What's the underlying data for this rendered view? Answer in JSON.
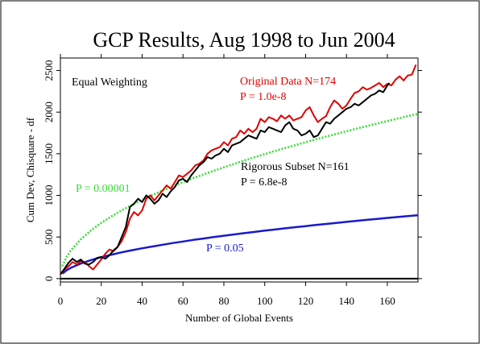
{
  "chart_data": {
    "type": "line",
    "title": "GCP Results, Aug 1998 to Jun 2004",
    "xlabel": "Number of Global Events",
    "ylabel": "Cum Dev, Chisquare - df",
    "xlim": [
      0,
      175
    ],
    "ylim": [
      -40,
      2650
    ],
    "x_ticks": [
      0,
      20,
      40,
      60,
      80,
      100,
      120,
      140,
      160
    ],
    "y_ticks": [
      0,
      500,
      1000,
      1500,
      2000,
      2500
    ],
    "x_tick_labels": [
      "0",
      "20",
      "40",
      "60",
      "80",
      "100",
      "120",
      "140",
      "160"
    ],
    "y_tick_labels": [
      "0",
      "500",
      "1000",
      "1500",
      "2000",
      "2500"
    ],
    "grid": false,
    "zero_line": true,
    "annotations": {
      "weighting": "Equal Weighting",
      "original_title": "Original Data N=174",
      "original_p": "P = 1.0e-8",
      "subset_title": "Rigorous Subset N=161",
      "subset_p": "P = 6.8e-8",
      "p_high": "P = 0.00001",
      "p_low": "P = 0.05"
    },
    "colors": {
      "original": "#e00000",
      "subset": "#000000",
      "p_high": "#33dd33",
      "p_low": "#1a1acc",
      "axis": "#000000"
    },
    "series": [
      {
        "key": "original",
        "x": [
          0,
          2,
          4,
          6,
          8,
          10,
          12,
          14,
          16,
          18,
          20,
          22,
          24,
          26,
          28,
          30,
          32,
          34,
          36,
          38,
          40,
          42,
          44,
          46,
          48,
          50,
          52,
          54,
          56,
          58,
          60,
          62,
          64,
          66,
          68,
          70,
          72,
          74,
          76,
          78,
          80,
          82,
          84,
          86,
          88,
          90,
          92,
          94,
          96,
          98,
          100,
          102,
          104,
          106,
          108,
          110,
          112,
          114,
          116,
          118,
          120,
          122,
          124,
          126,
          128,
          130,
          132,
          134,
          136,
          138,
          140,
          142,
          144,
          146,
          148,
          150,
          152,
          154,
          156,
          158,
          160,
          162,
          164,
          166,
          168,
          170,
          172,
          174
        ],
        "values": [
          60,
          110,
          150,
          200,
          170,
          210,
          200,
          150,
          110,
          170,
          230,
          300,
          350,
          330,
          380,
          450,
          560,
          720,
          800,
          760,
          820,
          960,
          1000,
          940,
          1000,
          1060,
          1120,
          1080,
          1160,
          1240,
          1220,
          1260,
          1300,
          1360,
          1380,
          1420,
          1500,
          1540,
          1560,
          1580,
          1640,
          1600,
          1680,
          1700,
          1780,
          1740,
          1800,
          1760,
          1800,
          1920,
          1880,
          1940,
          1920,
          1890,
          1960,
          1920,
          1960,
          1900,
          1920,
          1940,
          2020,
          2060,
          1960,
          1880,
          1920,
          1950,
          2060,
          2140,
          2100,
          2040,
          2080,
          2160,
          2230,
          2250,
          2300,
          2270,
          2290,
          2320,
          2350,
          2300,
          2340,
          2320,
          2390,
          2430,
          2380,
          2440,
          2450,
          2570
        ]
      },
      {
        "key": "subset",
        "x": [
          0,
          2,
          4,
          6,
          8,
          10,
          12,
          14,
          16,
          18,
          20,
          22,
          24,
          26,
          28,
          30,
          32,
          34,
          36,
          38,
          40,
          42,
          44,
          46,
          48,
          50,
          52,
          54,
          56,
          58,
          60,
          62,
          64,
          66,
          68,
          70,
          72,
          74,
          76,
          78,
          80,
          82,
          84,
          86,
          88,
          90,
          92,
          94,
          96,
          98,
          100,
          102,
          104,
          106,
          108,
          110,
          112,
          114,
          116,
          118,
          120,
          122,
          124,
          126,
          128,
          130,
          132,
          134,
          136,
          138,
          140,
          142,
          144,
          146,
          148,
          150,
          152,
          154,
          156,
          158,
          160,
          161
        ],
        "values": [
          50,
          120,
          190,
          240,
          200,
          230,
          180,
          170,
          200,
          250,
          260,
          240,
          280,
          340,
          380,
          500,
          620,
          860,
          900,
          960,
          920,
          1000,
          960,
          900,
          940,
          1020,
          980,
          1050,
          1100,
          1180,
          1200,
          1160,
          1240,
          1300,
          1360,
          1400,
          1460,
          1440,
          1480,
          1500,
          1560,
          1520,
          1600,
          1620,
          1640,
          1680,
          1720,
          1700,
          1680,
          1780,
          1760,
          1820,
          1800,
          1780,
          1760,
          1840,
          1880,
          1800,
          1780,
          1720,
          1740,
          1780,
          1700,
          1720,
          1800,
          1880,
          1860,
          1920,
          1960,
          2000,
          2040,
          2060,
          2100,
          2080,
          2120,
          2160,
          2200,
          2220,
          2260,
          2240,
          2320,
          2350
        ]
      },
      {
        "key": "p_high",
        "x": [
          1,
          3,
          5,
          10,
          15,
          20,
          25,
          30,
          35,
          40,
          45,
          50,
          55,
          60,
          65,
          70,
          75,
          80,
          85,
          90,
          95,
          100,
          105,
          110,
          115,
          120,
          125,
          130,
          135,
          140,
          145,
          150,
          155,
          160,
          165,
          170,
          175
        ],
        "values": [
          150,
          260,
          335,
          473,
          580,
          669,
          748,
          820,
          885,
          946,
          1004,
          1058,
          1110,
          1159,
          1206,
          1251,
          1295,
          1338,
          1379,
          1419,
          1458,
          1496,
          1533,
          1569,
          1604,
          1639,
          1673,
          1706,
          1738,
          1770,
          1802,
          1833,
          1863,
          1893,
          1922,
          1951,
          1980
        ]
      },
      {
        "key": "p_low",
        "x": [
          1,
          3,
          5,
          10,
          15,
          20,
          25,
          30,
          35,
          40,
          45,
          50,
          55,
          60,
          65,
          70,
          75,
          80,
          85,
          90,
          95,
          100,
          105,
          110,
          115,
          120,
          125,
          130,
          135,
          140,
          145,
          150,
          155,
          160,
          165,
          170,
          175
        ],
        "values": [
          60,
          100,
          129,
          182,
          223,
          258,
          288,
          316,
          341,
          364,
          386,
          407,
          427,
          446,
          465,
          482,
          499,
          515,
          531,
          546,
          561,
          576,
          590,
          604,
          618,
          631,
          644,
          657,
          669,
          682,
          694,
          706,
          717,
          729,
          740,
          751,
          762
        ]
      }
    ]
  }
}
